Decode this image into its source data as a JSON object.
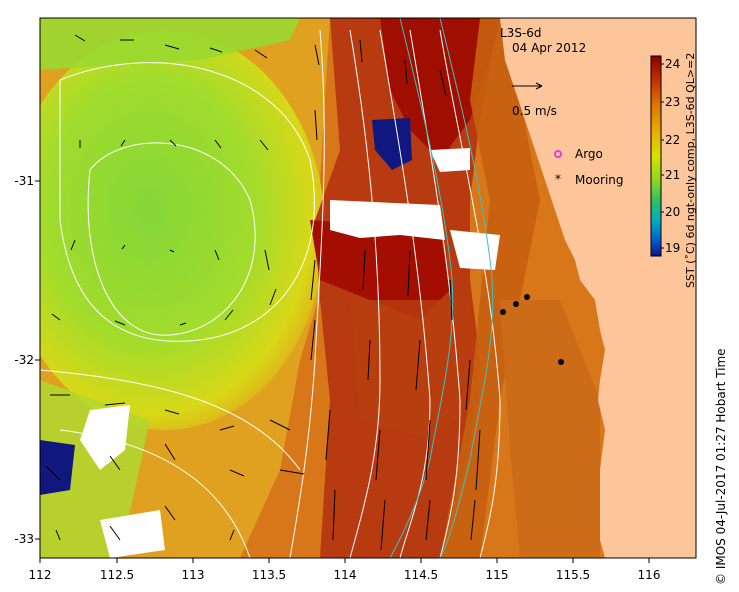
{
  "header": {
    "product": "L3S-6d",
    "date": "04 Apr 2012"
  },
  "scale": {
    "label": "0.5 m/s"
  },
  "legend": {
    "argo_label": "Argo",
    "mooring_label": "Mooring",
    "argo_color": "#e040e0",
    "mooring_color": "#000000"
  },
  "colorbar": {
    "ticks": [
      "24",
      "23",
      "22",
      "21",
      "20",
      "19"
    ],
    "title": "SST (˚C) 6d ngt-only comp, L3S-6d QL>=2",
    "stops": [
      "#8b0000",
      "#c43000",
      "#e07800",
      "#e6b000",
      "#d8e000",
      "#90d820",
      "#30c060",
      "#00b0c0",
      "#0060d0",
      "#101090"
    ]
  },
  "axes": {
    "x_ticks": [
      "112",
      "112.5",
      "113",
      "113.5",
      "114",
      "114.5",
      "115",
      "115.5",
      "116"
    ],
    "y_ticks": [
      "-31",
      "-32",
      "-33"
    ]
  },
  "credit": "© IMOS 04-Jul-2017 01:27 Hobart Time",
  "colors": {
    "land": "#fcc59a",
    "warm_core": "#a01000",
    "orange": "#d86a10",
    "green_pool": "#8ad83a",
    "isobath": "#ffffff",
    "shelf_contour": "#40c0c0",
    "missing": "#ffffff"
  }
}
